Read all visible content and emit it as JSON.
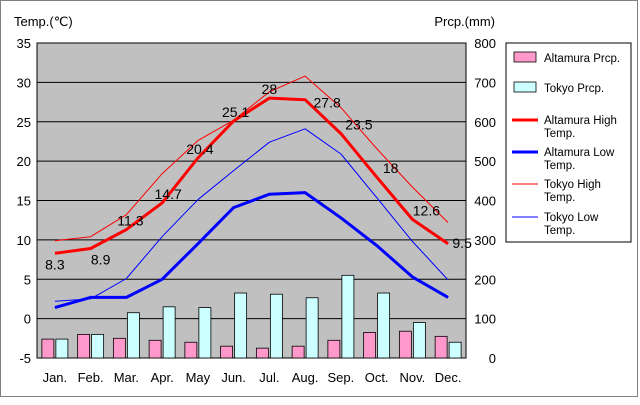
{
  "chart_data": {
    "type": "combo-bar-line",
    "y_left": {
      "label": "Temp.(℃)",
      "min": -5,
      "max": 35,
      "ticks": [
        "-5",
        "0",
        "5",
        "10",
        "15",
        "20",
        "25",
        "30",
        "35"
      ]
    },
    "y_right": {
      "label": "Prcp.(mm)",
      "min": 0,
      "max": 800,
      "ticks": [
        "0",
        "100",
        "200",
        "300",
        "400",
        "500",
        "600",
        "700",
        "800"
      ]
    },
    "categories": [
      "Jan.",
      "Feb.",
      "Mar.",
      "Apr.",
      "May",
      "Jun.",
      "Jul.",
      "Aug.",
      "Sep.",
      "Oct.",
      "Nov.",
      "Dec."
    ],
    "grid": true,
    "legend_position": "right",
    "bar_series": [
      {
        "name": "Altamura Prcp.",
        "color": "#ff99cc",
        "values": [
          48,
          60,
          50,
          45,
          40,
          30,
          25,
          30,
          45,
          65,
          68,
          55
        ]
      },
      {
        "name": "Tokyo Prcp.",
        "color": "#ccffff",
        "values": [
          48,
          60,
          115,
          130,
          128,
          165,
          162,
          153,
          210,
          165,
          90,
          40
        ]
      }
    ],
    "line_series": [
      {
        "name": "Altamura High Temp.",
        "color": "#ff0000",
        "width": 3,
        "values": [
          8.3,
          8.9,
          11.3,
          14.7,
          20.4,
          25.1,
          28,
          27.8,
          23.5,
          18,
          12.6,
          9.5
        ],
        "labels": [
          "8.3",
          "8.9",
          "11.3",
          "14.7",
          "20.4",
          "25.1",
          "28",
          "27.8",
          "23.5",
          "18",
          "12.6",
          "9.5"
        ]
      },
      {
        "name": "Altamura Low Temp.",
        "color": "#0000ff",
        "width": 3,
        "values": [
          1.4,
          2.7,
          2.7,
          5,
          9.5,
          14.1,
          15.8,
          16,
          12.8,
          9.3,
          5.3,
          2.7
        ]
      },
      {
        "name": "Tokyo High Temp.",
        "color": "#ff0000",
        "width": 1,
        "values": [
          9.9,
          10.4,
          13.2,
          18.4,
          22.6,
          25.2,
          28.8,
          30.8,
          26.8,
          21.6,
          16.7,
          12.2
        ]
      },
      {
        "name": "Tokyo Low Temp.",
        "color": "#0000ff",
        "width": 1,
        "values": [
          2.2,
          2.5,
          5.1,
          10.4,
          15.1,
          18.8,
          22.4,
          24.1,
          20.9,
          15.4,
          9.8,
          4.9
        ]
      }
    ],
    "legend": [
      {
        "label": "Altamura Prcp.",
        "kind": "bar",
        "color": "#ff99cc"
      },
      {
        "label": "Tokyo Prcp.",
        "kind": "bar",
        "color": "#ccffff"
      },
      {
        "label": "Altamura High Temp.",
        "kind": "line",
        "color": "#ff0000",
        "width": 3
      },
      {
        "label": "Altamura Low Temp.",
        "kind": "line",
        "color": "#0000ff",
        "width": 3
      },
      {
        "label": "Tokyo High Temp.",
        "kind": "line",
        "color": "#ff0000",
        "width": 1
      },
      {
        "label": "Tokyo Low Temp.",
        "kind": "line",
        "color": "#0000ff",
        "width": 1
      }
    ],
    "colors": {
      "plot_bg": "#c0c0c0",
      "grid": "#000000"
    }
  }
}
